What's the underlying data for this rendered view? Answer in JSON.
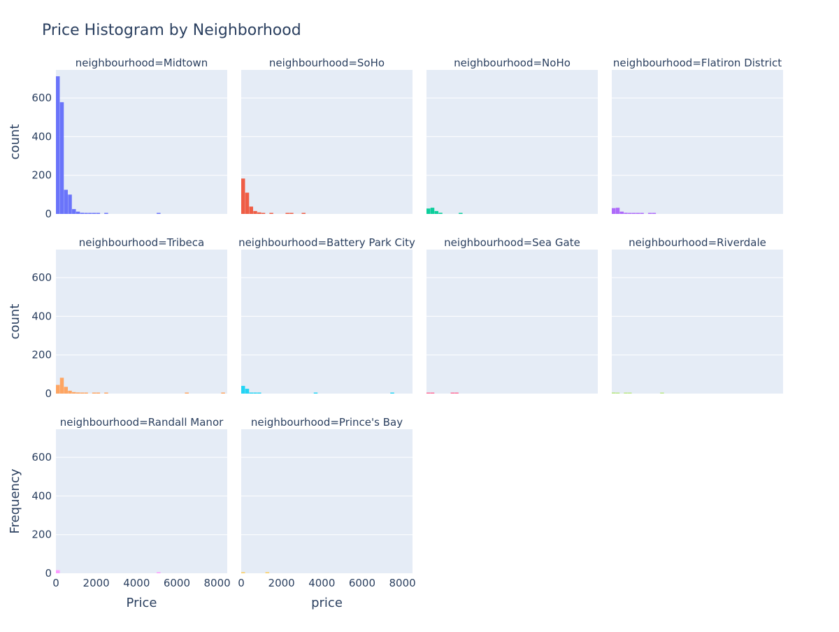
{
  "chart_data": {
    "type": "bar",
    "title": "Price Histogram by Neighborhood",
    "xlim": [
      0,
      8500
    ],
    "ylim": [
      0,
      745
    ],
    "grid": true,
    "x_ticks": [
      "0",
      "2000",
      "4000",
      "6000",
      "8000"
    ],
    "y_ticks": [
      "0",
      "200",
      "400",
      "600"
    ],
    "y_tick_values": [
      0,
      200,
      400,
      600
    ],
    "x_tick_values": [
      0,
      2000,
      4000,
      6000,
      8000
    ],
    "row_ylabels": [
      "count",
      "count",
      "Frequency"
    ],
    "col_xlabels": [
      "Price",
      "price"
    ],
    "facets": [
      {
        "label": "neighbourhood=Midtown",
        "color": "#636efa",
        "bins": [
          [
            0,
            200,
            712
          ],
          [
            200,
            400,
            578
          ],
          [
            400,
            600,
            125
          ],
          [
            600,
            800,
            100
          ],
          [
            800,
            1000,
            25
          ],
          [
            1000,
            1200,
            12
          ],
          [
            1200,
            1400,
            6
          ],
          [
            1400,
            1600,
            4
          ],
          [
            1600,
            1800,
            3
          ],
          [
            1800,
            2000,
            2
          ],
          [
            2000,
            2200,
            4
          ],
          [
            2400,
            2600,
            2
          ],
          [
            5000,
            5200,
            2
          ]
        ]
      },
      {
        "label": "neighbourhood=SoHo",
        "color": "#ef553b",
        "bins": [
          [
            0,
            200,
            183
          ],
          [
            200,
            400,
            110
          ],
          [
            400,
            600,
            38
          ],
          [
            600,
            800,
            15
          ],
          [
            800,
            1000,
            8
          ],
          [
            1000,
            1200,
            4
          ],
          [
            1400,
            1600,
            2
          ],
          [
            2200,
            2400,
            5
          ],
          [
            2400,
            2600,
            1
          ],
          [
            3000,
            3200,
            2
          ]
        ]
      },
      {
        "label": "neighbourhood=NoHo",
        "color": "#00cc96",
        "bins": [
          [
            0,
            200,
            28
          ],
          [
            200,
            400,
            32
          ],
          [
            400,
            600,
            15
          ],
          [
            600,
            800,
            6
          ],
          [
            1600,
            1800,
            2
          ]
        ]
      },
      {
        "label": "neighbourhood=Flatiron District",
        "color": "#ab63fa",
        "bins": [
          [
            0,
            200,
            30
          ],
          [
            200,
            400,
            32
          ],
          [
            400,
            600,
            12
          ],
          [
            600,
            800,
            6
          ],
          [
            800,
            1000,
            4
          ],
          [
            1000,
            1200,
            2
          ],
          [
            1200,
            1400,
            3
          ],
          [
            1400,
            1600,
            2
          ],
          [
            1800,
            2000,
            3
          ],
          [
            2000,
            2200,
            2
          ]
        ]
      },
      {
        "label": "neighbourhood=Tribeca",
        "color": "#ffa15a",
        "bins": [
          [
            0,
            200,
            45
          ],
          [
            200,
            400,
            82
          ],
          [
            400,
            600,
            35
          ],
          [
            600,
            800,
            15
          ],
          [
            800,
            1000,
            8
          ],
          [
            1000,
            1200,
            6
          ],
          [
            1200,
            1400,
            3
          ],
          [
            1400,
            1600,
            3
          ],
          [
            1800,
            2000,
            4
          ],
          [
            2000,
            2200,
            3
          ],
          [
            2400,
            2600,
            4
          ],
          [
            6400,
            6600,
            3
          ],
          [
            8200,
            8400,
            3
          ]
        ]
      },
      {
        "label": "neighbourhood=Battery Park City",
        "color": "#19d3f3",
        "bins": [
          [
            0,
            200,
            40
          ],
          [
            200,
            400,
            25
          ],
          [
            400,
            600,
            5
          ],
          [
            600,
            800,
            3
          ],
          [
            800,
            1000,
            2
          ],
          [
            3600,
            3800,
            3
          ],
          [
            7400,
            7600,
            3
          ]
        ]
      },
      {
        "label": "neighbourhood=Sea Gate",
        "color": "#ff6692",
        "bins": [
          [
            0,
            200,
            2
          ],
          [
            200,
            400,
            2
          ],
          [
            1200,
            1400,
            2
          ],
          [
            1400,
            1600,
            2
          ]
        ]
      },
      {
        "label": "neighbourhood=Riverdale",
        "color": "#b6e880",
        "bins": [
          [
            0,
            200,
            6
          ],
          [
            200,
            400,
            3
          ],
          [
            600,
            800,
            3
          ],
          [
            800,
            1000,
            3
          ],
          [
            2400,
            2600,
            3
          ]
        ]
      },
      {
        "label": "neighbourhood=Randall Manor",
        "color": "#ff97ff",
        "bins": [
          [
            0,
            200,
            16
          ],
          [
            5000,
            5200,
            2
          ]
        ]
      },
      {
        "label": "neighbourhood=Prince's Bay",
        "color": "#fecb52",
        "bins": [
          [
            0,
            200,
            2
          ],
          [
            1200,
            1400,
            2
          ]
        ]
      }
    ]
  }
}
